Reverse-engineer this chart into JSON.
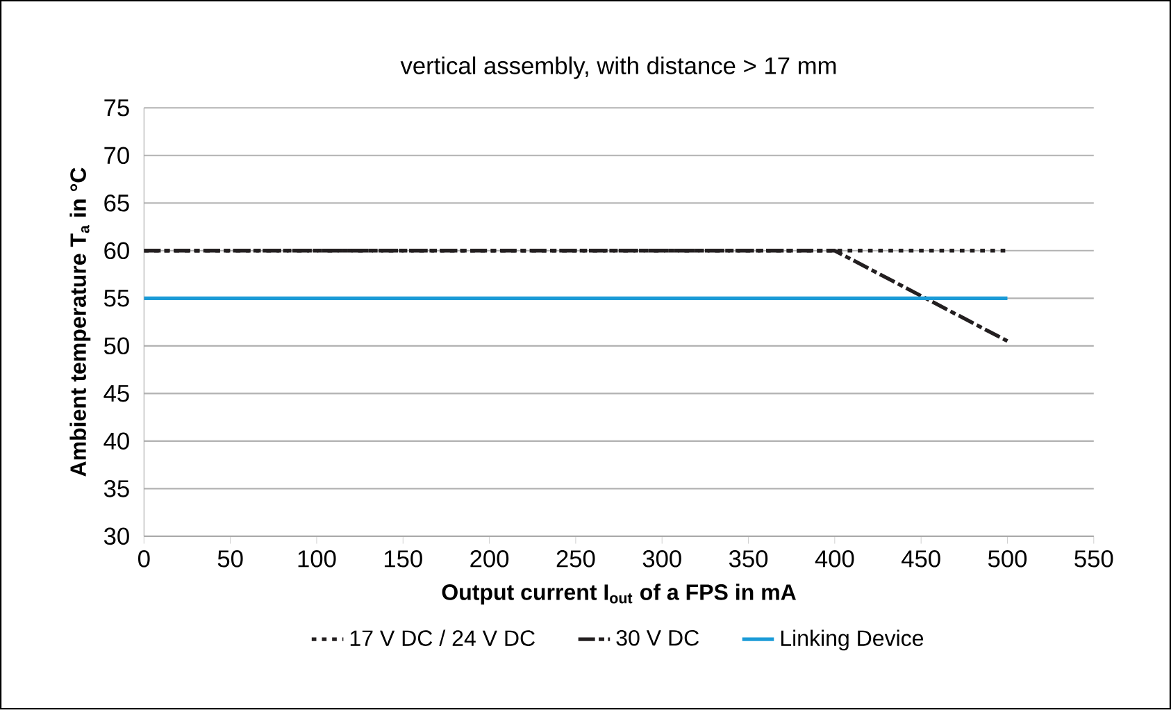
{
  "chart_data": {
    "type": "line",
    "title": "vertical assembly, with distance > 17 mm",
    "xlabel": "Output current I$_{out}$ of a FPS in mA",
    "ylabel": "Ambient temperature T$_{a}$ in °C",
    "series": [
      {
        "name": "17 V DC / 24 V DC",
        "color": "#231f20",
        "line_style": "dotted",
        "x": [
          0,
          500
        ],
        "values": [
          60,
          60
        ]
      },
      {
        "name": "30 V DC",
        "color": "#231f20",
        "line_style": "dashed",
        "x": [
          0,
          400,
          500
        ],
        "values": [
          60,
          60,
          50.5
        ]
      },
      {
        "name": "Linking Device",
        "color": "#1b9bd7",
        "line_style": "solid",
        "x": [
          0,
          500
        ],
        "values": [
          55,
          55
        ]
      }
    ],
    "xlim": [
      0,
      550
    ],
    "xticks": [
      0,
      50,
      100,
      150,
      200,
      250,
      300,
      350,
      400,
      450,
      500,
      550
    ],
    "ylim": [
      30,
      75
    ],
    "yticks": [
      30,
      35,
      40,
      45,
      50,
      55,
      60,
      65,
      70,
      75
    ],
    "grid": "y",
    "legend": "bottom",
    "marker": "none"
  }
}
